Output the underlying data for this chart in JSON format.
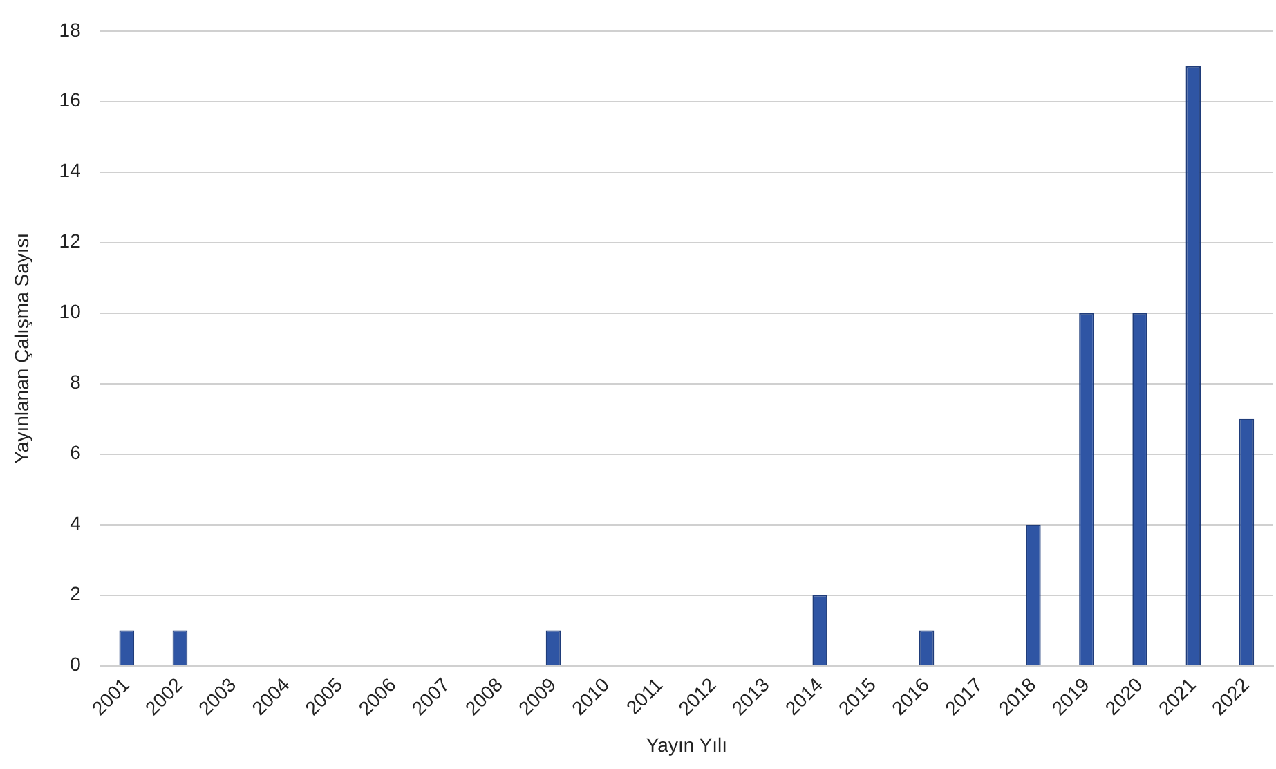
{
  "chart_data": {
    "type": "bar",
    "xlabel": "Yayın Yılı",
    "ylabel": "Yayınlanan Çalışma Sayısı",
    "categories": [
      "2001",
      "2002",
      "2003",
      "2004",
      "2005",
      "2006",
      "2007",
      "2008",
      "2009",
      "2010",
      "2011",
      "2012",
      "2013",
      "2014",
      "2015",
      "2016",
      "2017",
      "2018",
      "2019",
      "2020",
      "2021",
      "2022"
    ],
    "values": [
      1,
      1,
      0,
      0,
      0,
      0,
      0,
      0,
      1,
      0,
      0,
      0,
      0,
      2,
      0,
      1,
      0,
      4,
      10,
      10,
      17,
      7
    ],
    "color": "#2f55a4",
    "ylim": [
      0,
      18
    ],
    "yticks": [
      0,
      2,
      4,
      6,
      8,
      10,
      12,
      14,
      16,
      18
    ],
    "grid": "y",
    "legend": false
  }
}
